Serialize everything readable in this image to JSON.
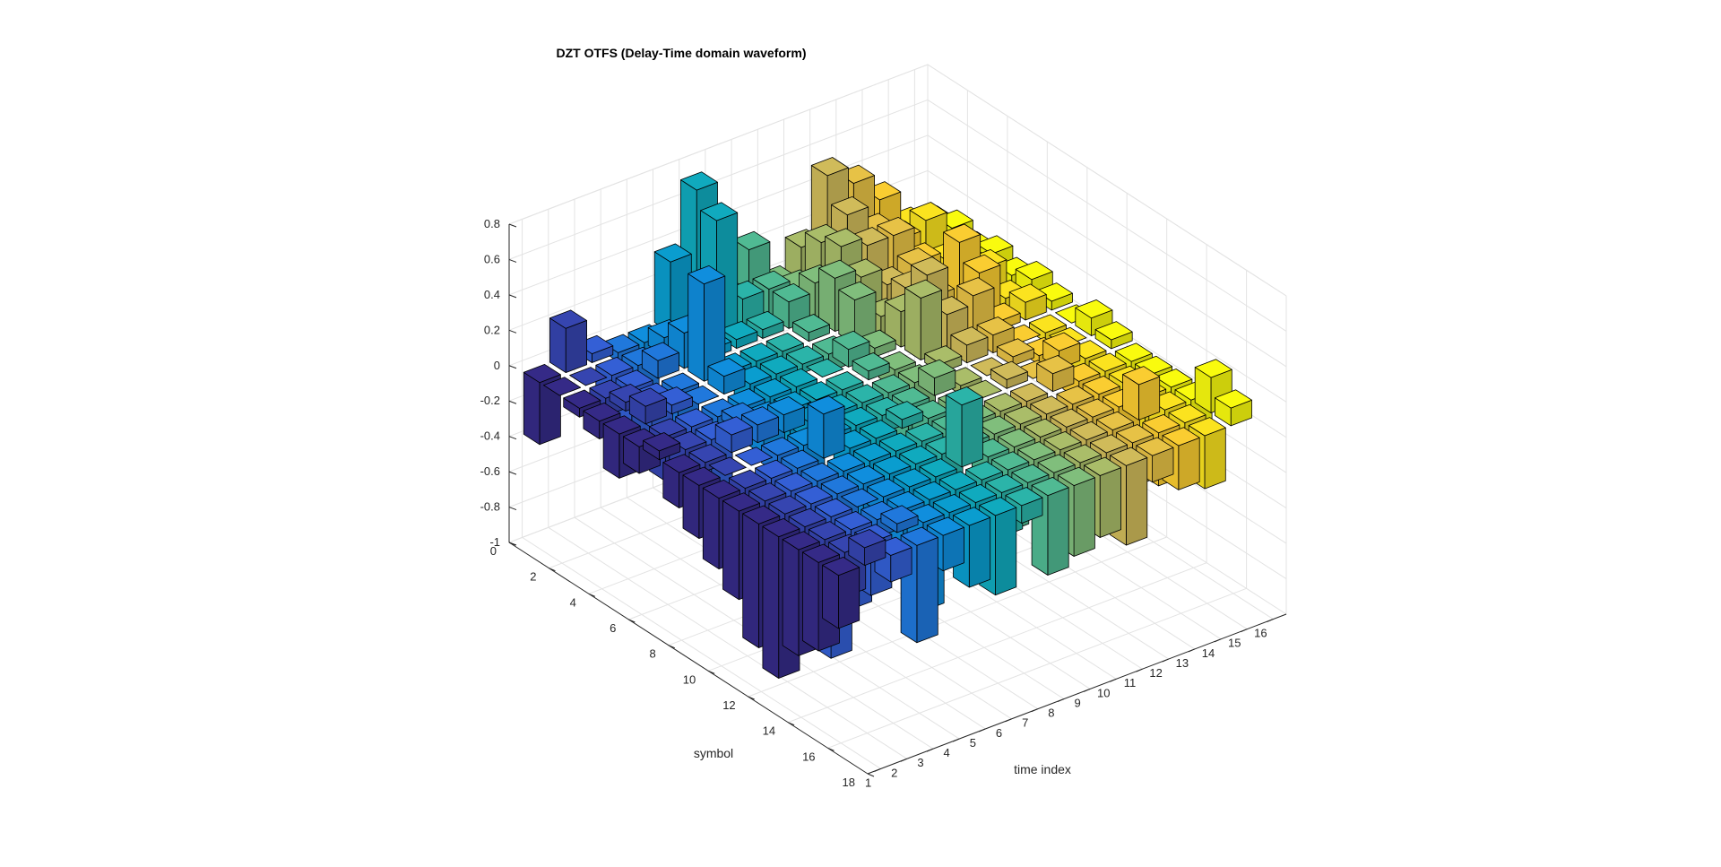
{
  "chart_data": {
    "type": "bar3",
    "title": "DZT OTFS (Delay-Time domain waveform)",
    "xlabel": "time index",
    "ylabel": "symbol",
    "zlabel": "",
    "x_ticks": [
      "1",
      "2",
      "3",
      "4",
      "5",
      "6",
      "7",
      "8",
      "9",
      "10",
      "11",
      "12",
      "13",
      "14",
      "15",
      "16"
    ],
    "y_ticks": [
      "0",
      "2",
      "4",
      "6",
      "8",
      "10",
      "12",
      "14",
      "16",
      "18"
    ],
    "z_ticks": [
      "-1",
      "-0.8",
      "-0.6",
      "-0.4",
      "-0.2",
      "0",
      "0.2",
      "0.4",
      "0.6",
      "0.8"
    ],
    "xlim": [
      0.5,
      16.5
    ],
    "ylim": [
      0,
      18
    ],
    "zlim": [
      -1,
      0.8
    ],
    "grid": true,
    "colormap": "parula (bar color by time index)",
    "series": [
      {
        "x": 1,
        "values": [
          -0.35,
          0,
          -0.05,
          -0.1,
          -0.25,
          -0.15,
          0.05,
          -0.2,
          -0.3,
          -0.4,
          -0.5,
          -0.7,
          -0.8,
          -0.6,
          -0.5,
          -0.3
        ]
      },
      {
        "x": 2,
        "values": [
          0.25,
          0,
          -0.1,
          0.05,
          0.1,
          -0.25,
          -0.3,
          -0.05,
          0,
          -0.2,
          -0.7,
          -0.8,
          -0.7,
          -0.3,
          -0.25,
          0.1
        ]
      },
      {
        "x": 3,
        "values": [
          0.05,
          -0.3,
          -0.35,
          -0.15,
          0.05,
          -0.4,
          -0.55,
          0.1,
          0,
          -0.2,
          -0.5,
          -0.7,
          -0.8,
          -0.45,
          -0.3,
          -0.15
        ]
      },
      {
        "x": 4,
        "values": [
          -0.05,
          -0.15,
          0.1,
          -0.3,
          0,
          -0.1,
          0.05,
          0.1,
          -0.1,
          -0.05,
          -0.25,
          -0.3,
          0,
          -0.1,
          0.05,
          -0.55
        ]
      },
      {
        "x": 5,
        "values": [
          -0.15,
          0.1,
          0.2,
          0.55,
          0.1,
          -0.1,
          -0.2,
          0.1,
          -0.2,
          0.25,
          -0.35,
          -0.2,
          -0.1,
          -0.4,
          -0.5,
          -0.2
        ]
      },
      {
        "x": 6,
        "values": [
          0.4,
          0,
          0.05,
          -0.1,
          -0.15,
          -0.05,
          -0.3,
          -0.1,
          -0.05,
          -0.2,
          -0.25,
          -0.3,
          -0.45,
          -0.15,
          -0.3,
          -0.35
        ]
      },
      {
        "x": 7,
        "values": [
          0.75,
          0.65,
          0.05,
          -0.2,
          -0.3,
          -0.05,
          -0.15,
          -0.1,
          -0.2,
          -0.3,
          -0.1,
          -0.25,
          -0.35,
          -0.3,
          -0.2,
          -0.45
        ]
      },
      {
        "x": 8,
        "values": [
          0.1,
          0.15,
          0.05,
          -0.1,
          -0.05,
          0,
          -0.2,
          -0.15,
          -0.1,
          0.05,
          -0.05,
          -0.25,
          0.35,
          -0.35,
          -0.25,
          -0.1
        ]
      },
      {
        "x": 9,
        "values": [
          0.3,
          0.15,
          0.15,
          0.05,
          -0.1,
          0.1,
          0.05,
          -0.1,
          -0.2,
          -0.15,
          -0.05,
          -0.1,
          -0.3,
          -0.35,
          -0.2,
          -0.45
        ]
      },
      {
        "x": 10,
        "values": [
          0.05,
          0.1,
          0.2,
          0.3,
          0.25,
          0.05,
          -0.1,
          -0.15,
          0.1,
          -0.2,
          -0.1,
          -0.05,
          -0.2,
          -0.15,
          -0.3,
          -0.4
        ]
      },
      {
        "x": 11,
        "values": [
          0.2,
          0.3,
          0.35,
          0.25,
          0.1,
          0.2,
          0.35,
          0.05,
          -0.05,
          0,
          -0.2,
          -0.15,
          -0.25,
          -0.3,
          -0.4,
          -0.35
        ]
      },
      {
        "x": 12,
        "values": [
          0.55,
          0.4,
          0.3,
          0.15,
          0.2,
          0.35,
          0.2,
          0.1,
          0,
          0.05,
          -0.1,
          -0.2,
          -0.3,
          -0.25,
          -0.35,
          -0.45
        ]
      },
      {
        "x": 13,
        "values": [
          0.45,
          0.25,
          0.3,
          0.2,
          0.1,
          -0.15,
          0.25,
          0.1,
          0.05,
          0,
          0.1,
          -0.15,
          -0.2,
          -0.3,
          -0.25,
          -0.15
        ]
      },
      {
        "x": 14,
        "values": [
          0.3,
          0.15,
          0.1,
          0.05,
          0.35,
          0.25,
          0.05,
          0,
          -0.05,
          0.1,
          -0.1,
          -0.2,
          -0.35,
          0.2,
          -0.3,
          -0.25
        ]
      },
      {
        "x": 15,
        "values": [
          0.1,
          0.2,
          0.05,
          0.1,
          0.15,
          0.05,
          0.1,
          -0.05,
          0,
          -0.1,
          -0.05,
          -0.1,
          -0.2,
          -0.15,
          -0.25,
          -0.3
        ]
      },
      {
        "x": 16,
        "values": [
          0.05,
          0.1,
          0.05,
          0.1,
          0.05,
          0.1,
          0.05,
          0,
          0.1,
          0.05,
          -0.05,
          -0.15,
          -0.1,
          -0.25,
          0.2,
          0.1
        ]
      }
    ]
  }
}
